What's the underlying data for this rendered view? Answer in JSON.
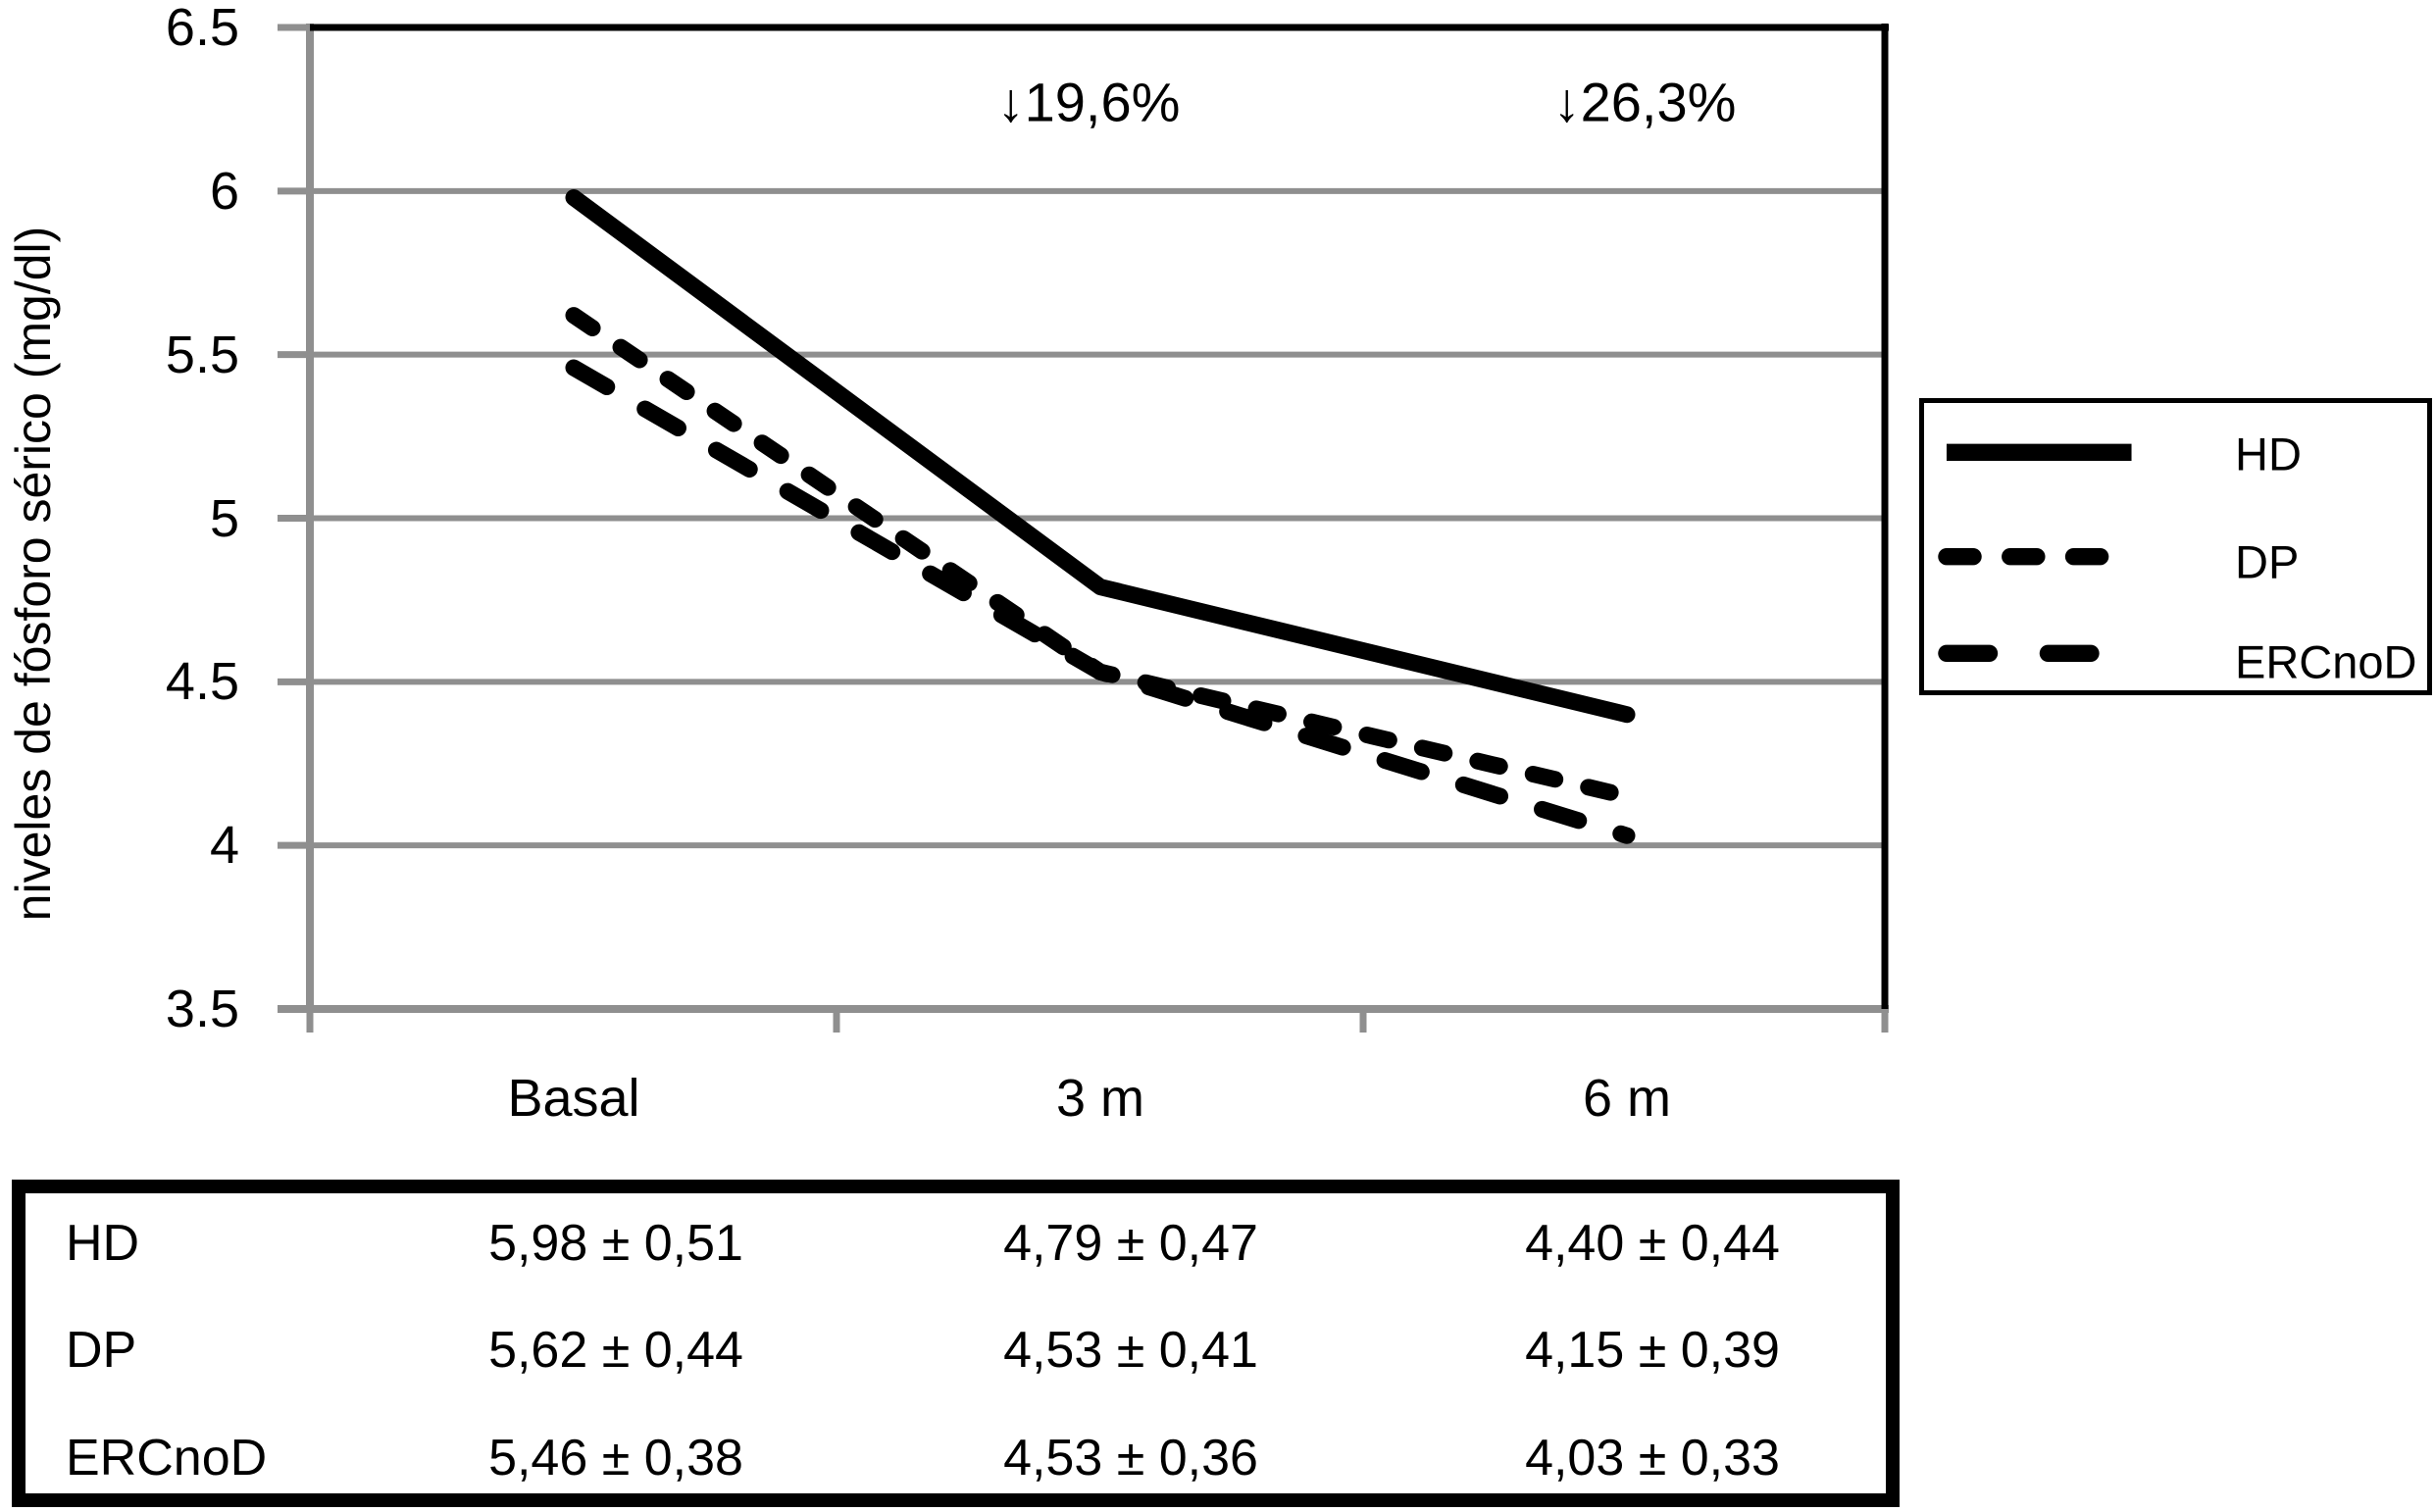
{
  "colors": {
    "series_line": "#000000",
    "grid_line": "#8f8f8f",
    "background": "#ffffff",
    "text": "#000000"
  },
  "chart_data": {
    "type": "line",
    "title": "",
    "xlabel": "",
    "ylabel": "niveles de fósforo sérico (mg/dl)",
    "categories": [
      "Basal",
      "3 m",
      "6 m"
    ],
    "ylim": [
      3.5,
      6.5
    ],
    "yticks": [
      6.5,
      6,
      5.5,
      5,
      4.5,
      4,
      3.5
    ],
    "ytick_labels": [
      "6.5",
      "6",
      "5.5",
      "5",
      "4.5",
      "4",
      "3.5"
    ],
    "grid": true,
    "legend_position": "right-outside",
    "series": [
      {
        "name": "HD",
        "values": [
          5.98,
          4.79,
          4.4
        ],
        "line_style": "solid"
      },
      {
        "name": "DP",
        "values": [
          5.62,
          4.53,
          4.15
        ],
        "line_style": "dashed-short"
      },
      {
        "name": "ERCnoD",
        "values": [
          5.46,
          4.53,
          4.03
        ],
        "line_style": "dashed-long"
      }
    ],
    "annotations": [
      {
        "text": "↓19,6%",
        "category": "3 m"
      },
      {
        "text": "↓26,3%",
        "category": "6 m"
      }
    ]
  },
  "table": {
    "rows": [
      {
        "label": "HD",
        "values": [
          "5,98 ± 0,51",
          "4,79 ± 0,47",
          "4,40 ± 0,44"
        ]
      },
      {
        "label": "DP",
        "values": [
          "5,62 ± 0,44",
          "4,53 ± 0,41",
          "4,15 ± 0,39"
        ]
      },
      {
        "label": "ERCnoD",
        "values": [
          "5,46 ± 0,38",
          "4,53 ± 0,36",
          "4,03 ± 0,33"
        ]
      }
    ]
  }
}
